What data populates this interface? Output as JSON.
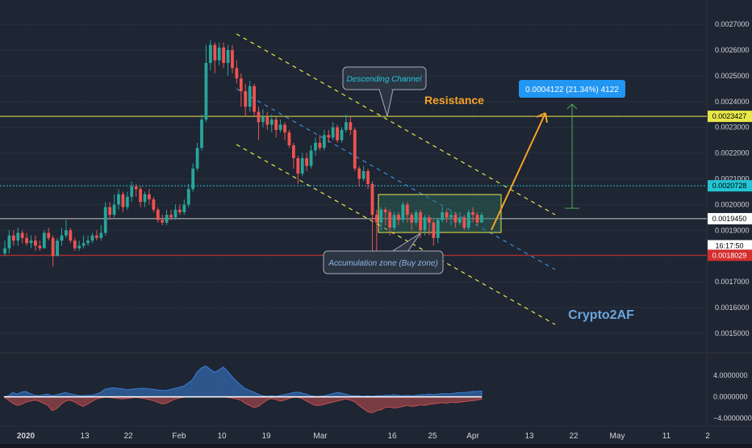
{
  "chart_data": {
    "type": "candlestick",
    "title": "",
    "price_axis": {
      "ticks": [
        "0.0027000",
        "0.0026000",
        "0.0025000",
        "0.0024000",
        "0.0023000",
        "0.0022000",
        "0.0021000",
        "0.0020000",
        "0.0019000",
        "0.0018000",
        "0.0017000",
        "0.0016000",
        "0.0015000"
      ],
      "range": [
        0.00144,
        0.00276
      ],
      "scale": "linear"
    },
    "indicator_axis": {
      "ticks": [
        "4.0000000",
        "0.0000000",
        "−4.0000000"
      ],
      "range": [
        -4.9,
        6.0
      ]
    },
    "time_axis": {
      "ticks": [
        "2020",
        "13",
        "22",
        "Feb",
        "10",
        "19",
        "Mar",
        "16",
        "25",
        "Apr",
        "13",
        "22",
        "May",
        "11",
        "2"
      ]
    },
    "price_labels": [
      {
        "text": "0.0023427",
        "value": 0.0023427,
        "color": "#e8e84a",
        "text_color": "#000000"
      },
      {
        "text": "0.0020728",
        "value": 0.0020728,
        "color": "#22c5d3",
        "text_color": "#000000"
      },
      {
        "text": "0.0019450",
        "value": 0.001945,
        "color": "#ffffff",
        "text_color": "#000000"
      },
      {
        "text": "16:17:50",
        "value": 0.00184,
        "color": "#ffffff",
        "text_color": "#000000"
      },
      {
        "text": "0.0018029",
        "value": 0.0018029,
        "color": "#d32f2f",
        "text_color": "#ffffff"
      }
    ],
    "horizontal_lines": [
      {
        "name": "resistance",
        "value": 0.0023427,
        "color": "#e8e84a",
        "style": "solid"
      },
      {
        "name": "level-cyan",
        "value": 0.0020728,
        "color": "#22c5d3",
        "style": "dotted"
      },
      {
        "name": "last-price",
        "value": 0.001945,
        "color": "#cccccc",
        "style": "solid"
      },
      {
        "name": "support",
        "value": 0.0018029,
        "color": "#d32f2f",
        "style": "solid"
      }
    ],
    "annotations": {
      "resistance": "Resistance",
      "descending_channel": "Descending Channel",
      "accumulation": "Accumulation zone (Buy zone)",
      "target": "0.0004122 (21.34%) 4122",
      "author": "Crypto2AF"
    },
    "candles": [
      [
        0.00181,
        0.00183,
        0.00186,
        0.0018
      ],
      [
        0.00183,
        0.00188,
        0.0019,
        0.00181
      ],
      [
        0.00188,
        0.00186,
        0.0019,
        0.00184
      ],
      [
        0.00186,
        0.00189,
        0.00191,
        0.00184
      ],
      [
        0.00189,
        0.00187,
        0.0019,
        0.00185
      ],
      [
        0.00187,
        0.00185,
        0.00189,
        0.00184
      ],
      [
        0.00185,
        0.00186,
        0.00188,
        0.00183
      ],
      [
        0.00186,
        0.00184,
        0.00188,
        0.00182
      ],
      [
        0.00184,
        0.00183,
        0.00186,
        0.00182
      ],
      [
        0.00183,
        0.00189,
        0.0019,
        0.00183
      ],
      [
        0.00189,
        0.00187,
        0.00191,
        0.00186
      ],
      [
        0.00187,
        0.0018,
        0.00188,
        0.00176
      ],
      [
        0.0018,
        0.00186,
        0.00187,
        0.0018
      ],
      [
        0.00186,
        0.00188,
        0.00191,
        0.00184
      ],
      [
        0.00188,
        0.0019,
        0.00194,
        0.00187
      ],
      [
        0.0019,
        0.00186,
        0.00191,
        0.00185
      ],
      [
        0.00186,
        0.00183,
        0.00187,
        0.00182
      ],
      [
        0.00183,
        0.00184,
        0.00186,
        0.00182
      ],
      [
        0.00184,
        0.00185,
        0.00188,
        0.00183
      ],
      [
        0.00185,
        0.00186,
        0.00188,
        0.00184
      ],
      [
        0.00186,
        0.00188,
        0.00189,
        0.00185
      ],
      [
        0.00188,
        0.00187,
        0.0019,
        0.00186
      ],
      [
        0.00187,
        0.00189,
        0.00192,
        0.00186
      ],
      [
        0.00189,
        0.00199,
        0.00201,
        0.00188
      ],
      [
        0.00199,
        0.00196,
        0.00201,
        0.00194
      ],
      [
        0.00196,
        0.002,
        0.00204,
        0.00195
      ],
      [
        0.002,
        0.00204,
        0.00206,
        0.00198
      ],
      [
        0.00204,
        0.00199,
        0.00205,
        0.00197
      ],
      [
        0.00199,
        0.00203,
        0.00205,
        0.00198
      ],
      [
        0.00203,
        0.00207,
        0.00209,
        0.00201
      ],
      [
        0.00207,
        0.00206,
        0.00208,
        0.00203
      ],
      [
        0.00206,
        0.00201,
        0.00207,
        0.00199
      ],
      [
        0.00201,
        0.00204,
        0.00205,
        0.00199
      ],
      [
        0.00204,
        0.00202,
        0.00206,
        0.002
      ],
      [
        0.00202,
        0.00198,
        0.00203,
        0.00197
      ],
      [
        0.00198,
        0.00194,
        0.00199,
        0.00193
      ],
      [
        0.00194,
        0.00193,
        0.00196,
        0.00192
      ],
      [
        0.00193,
        0.00196,
        0.00198,
        0.00192
      ],
      [
        0.00196,
        0.00195,
        0.00198,
        0.00194
      ],
      [
        0.00195,
        0.00198,
        0.002,
        0.00194
      ],
      [
        0.00198,
        0.00197,
        0.002,
        0.00196
      ],
      [
        0.00197,
        0.002,
        0.00202,
        0.00196
      ],
      [
        0.002,
        0.00206,
        0.00208,
        0.00199
      ],
      [
        0.00206,
        0.00214,
        0.00216,
        0.00205
      ],
      [
        0.00214,
        0.00222,
        0.00224,
        0.00213
      ],
      [
        0.00222,
        0.00233,
        0.00235,
        0.00221
      ],
      [
        0.00233,
        0.00255,
        0.00262,
        0.00232
      ],
      [
        0.00255,
        0.00262,
        0.00264,
        0.00252
      ],
      [
        0.00262,
        0.00256,
        0.00263,
        0.00251
      ],
      [
        0.00256,
        0.00261,
        0.00263,
        0.00254
      ],
      [
        0.00261,
        0.00255,
        0.00263,
        0.00253
      ],
      [
        0.00255,
        0.0026,
        0.00262,
        0.0025
      ],
      [
        0.0026,
        0.00253,
        0.00262,
        0.00251
      ],
      [
        0.00253,
        0.00249,
        0.00256,
        0.00247
      ],
      [
        0.00249,
        0.00244,
        0.00251,
        0.00238
      ],
      [
        0.00244,
        0.00238,
        0.00247,
        0.00234
      ],
      [
        0.00238,
        0.00246,
        0.00248,
        0.00236
      ],
      [
        0.00246,
        0.00236,
        0.00247,
        0.00234
      ],
      [
        0.00236,
        0.00232,
        0.00238,
        0.00225
      ],
      [
        0.00232,
        0.00234,
        0.00237,
        0.0023
      ],
      [
        0.00234,
        0.00231,
        0.00236,
        0.00229
      ],
      [
        0.00231,
        0.00233,
        0.00235,
        0.00228
      ],
      [
        0.00233,
        0.00229,
        0.00234,
        0.00226
      ],
      [
        0.00229,
        0.00231,
        0.00233,
        0.00228
      ],
      [
        0.00231,
        0.00228,
        0.00232,
        0.00225
      ],
      [
        0.00228,
        0.00223,
        0.00229,
        0.00222
      ],
      [
        0.00223,
        0.00218,
        0.00224,
        0.00214
      ],
      [
        0.00218,
        0.00212,
        0.00219,
        0.00208
      ],
      [
        0.00212,
        0.00218,
        0.0022,
        0.00211
      ],
      [
        0.00218,
        0.00215,
        0.0022,
        0.00213
      ],
      [
        0.00215,
        0.00221,
        0.00223,
        0.00214
      ],
      [
        0.00221,
        0.00224,
        0.00226,
        0.00219
      ],
      [
        0.00224,
        0.00222,
        0.00227,
        0.00221
      ],
      [
        0.00222,
        0.00227,
        0.00229,
        0.00221
      ],
      [
        0.00227,
        0.00226,
        0.00229,
        0.00224
      ],
      [
        0.00226,
        0.0023,
        0.00232,
        0.00225
      ],
      [
        0.0023,
        0.00225,
        0.00231,
        0.00224
      ],
      [
        0.00225,
        0.00229,
        0.0023,
        0.00224
      ],
      [
        0.00229,
        0.00232,
        0.00235,
        0.00228
      ],
      [
        0.00232,
        0.00229,
        0.00234,
        0.00227
      ],
      [
        0.00229,
        0.00214,
        0.0023,
        0.00213
      ],
      [
        0.00214,
        0.0021,
        0.00215,
        0.00207
      ],
      [
        0.0021,
        0.00213,
        0.00215,
        0.00209
      ],
      [
        0.00213,
        0.00208,
        0.00214,
        0.00206
      ],
      [
        0.00208,
        0.00196,
        0.00209,
        0.0018
      ],
      [
        0.00196,
        0.00193,
        0.00198,
        0.00178
      ],
      [
        0.00193,
        0.00198,
        0.00199,
        0.0019
      ],
      [
        0.00198,
        0.00197,
        0.00199,
        0.00192
      ],
      [
        0.00197,
        0.00191,
        0.00198,
        0.00188
      ],
      [
        0.00191,
        0.00196,
        0.00197,
        0.0019
      ],
      [
        0.00196,
        0.00194,
        0.00197,
        0.00192
      ],
      [
        0.00194,
        0.002,
        0.00201,
        0.00193
      ],
      [
        0.002,
        0.00196,
        0.00201,
        0.00193
      ],
      [
        0.00196,
        0.00193,
        0.00197,
        0.0019
      ],
      [
        0.00193,
        0.00197,
        0.00198,
        0.00192
      ],
      [
        0.00197,
        0.0019,
        0.00198,
        0.00187
      ],
      [
        0.0019,
        0.00195,
        0.00196,
        0.00188
      ],
      [
        0.00195,
        0.00193,
        0.00196,
        0.00188
      ],
      [
        0.00193,
        0.00187,
        0.00194,
        0.00184
      ],
      [
        0.00187,
        0.00194,
        0.00195,
        0.00185
      ],
      [
        0.00194,
        0.00197,
        0.00199,
        0.00193
      ],
      [
        0.00197,
        0.00195,
        0.00198,
        0.00193
      ],
      [
        0.00195,
        0.00196,
        0.00198,
        0.00192
      ],
      [
        0.00196,
        0.00193,
        0.00197,
        0.00191
      ],
      [
        0.00193,
        0.00195,
        0.00197,
        0.00192
      ],
      [
        0.00195,
        0.00191,
        0.00196,
        0.0019
      ],
      [
        0.00191,
        0.00197,
        0.00198,
        0.0019
      ],
      [
        0.00197,
        0.00196,
        0.00199,
        0.00193
      ],
      [
        0.00196,
        0.00193,
        0.00197,
        0.00192
      ],
      [
        0.00193,
        0.00196,
        0.00197,
        0.00193
      ]
    ],
    "indicator": {
      "name": "",
      "blue": [
        0,
        0.2,
        0.8,
        0.5,
        0.9,
        1.0,
        0.6,
        0.3,
        0.2,
        0.4,
        0.5,
        0.2,
        0.4,
        0.6,
        0.8,
        0.6,
        0.4,
        0.3,
        0.2,
        0.3,
        0.3,
        0.5,
        0.8,
        1.4,
        1.6,
        1.7,
        1.6,
        1.5,
        1.3,
        1.4,
        1.5,
        1.6,
        1.6,
        1.5,
        1.4,
        1.3,
        1.2,
        1.2,
        1.4,
        1.6,
        1.8,
        2.0,
        2.6,
        3.2,
        4.6,
        5.4,
        5.8,
        5.2,
        4.6,
        5.0,
        5.6,
        4.8,
        3.8,
        3.0,
        2.2,
        1.6,
        1.2,
        0.9,
        0.5,
        0.2,
        0.1,
        0.2,
        0.1,
        0.3,
        0.4,
        0.6,
        0.8,
        0.9,
        0.7,
        0.5,
        0.2,
        0.1,
        0.1,
        0.2,
        0.4,
        0.6,
        0.8,
        0.7,
        0.5,
        0.3,
        0.2,
        0.2,
        0.1,
        0.2,
        0.1,
        0.2,
        0.2,
        0.3,
        0.3,
        0.4,
        0.3,
        0.2,
        0.3,
        0.2,
        0.3,
        0.4,
        0.4,
        0.5,
        0.4,
        0.5,
        0.6,
        0.6,
        0.6,
        0.7,
        0.8,
        0.8,
        0.9,
        1.0,
        1.0,
        1.1
      ],
      "red": [
        0,
        -0.6,
        -1.2,
        -1.6,
        -1.4,
        -1.0,
        -0.8,
        -0.6,
        -0.8,
        -1.2,
        -1.6,
        -2.6,
        -2.2,
        -1.4,
        -0.8,
        -0.6,
        -0.9,
        -1.4,
        -1.8,
        -1.4,
        -0.9,
        -0.4,
        -0.2,
        -0.1,
        -0.1,
        -0.2,
        -0.3,
        -0.4,
        -0.3,
        -0.2,
        -0.1,
        -0.2,
        -0.3,
        -0.5,
        -0.7,
        -1.0,
        -1.3,
        -1.2,
        -0.8,
        -0.4,
        -0.2,
        -0.1,
        0,
        0,
        0,
        0,
        0,
        0,
        0,
        0,
        0,
        -0.1,
        -0.2,
        -0.4,
        -0.6,
        -1.2,
        -1.6,
        -2.0,
        -1.8,
        -1.2,
        -0.6,
        -0.3,
        -0.5,
        -0.8,
        -0.6,
        -0.3,
        -0.1,
        -0.1,
        -0.3,
        -0.8,
        -1.2,
        -1.6,
        -1.6,
        -1.4,
        -1.2,
        -1.0,
        -0.8,
        -0.6,
        -0.4,
        -0.6,
        -0.9,
        -1.6,
        -2.2,
        -2.8,
        -3.0,
        -2.6,
        -2.4,
        -2.0,
        -1.9,
        -2.1,
        -2.0,
        -1.8,
        -1.6,
        -1.8,
        -1.7,
        -1.5,
        -1.6,
        -1.4,
        -1.3,
        -1.2,
        -1.1,
        -1.2,
        -1.0,
        -1.1,
        -1.0,
        -0.9,
        -0.8,
        -0.7,
        -0.6,
        -0.4
      ]
    }
  }
}
